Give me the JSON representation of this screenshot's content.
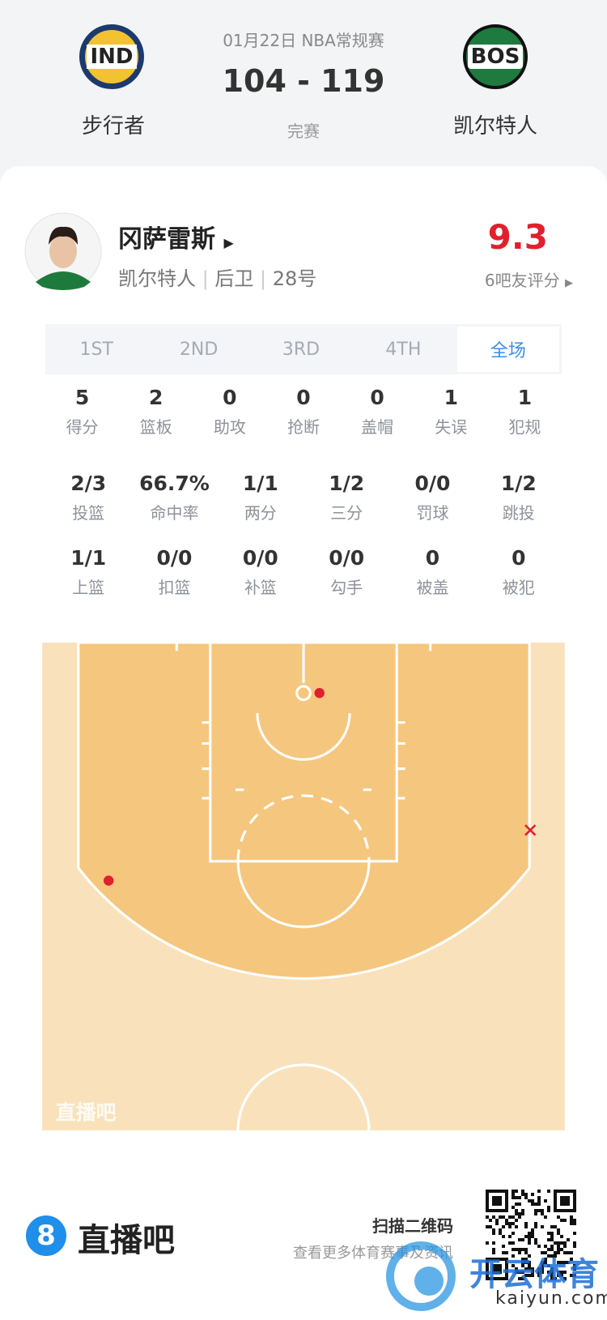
{
  "header": {
    "date": "01月22日 NBA常规赛",
    "score": "104 - 119",
    "status": "完赛",
    "home": {
      "logo": "IND",
      "name": "步行者"
    },
    "away": {
      "logo": "BOS",
      "name": "凯尔特人"
    }
  },
  "player": {
    "name": "冈萨雷斯",
    "team": "凯尔特人",
    "position": "后卫",
    "number": "28号",
    "rating": "9.3",
    "rating_label": "6吧友评分"
  },
  "tabs": [
    "1ST",
    "2ND",
    "3RD",
    "4TH",
    "全场"
  ],
  "stats": [
    [
      {
        "value": "5",
        "label": "得分"
      },
      {
        "value": "2",
        "label": "篮板"
      },
      {
        "value": "0",
        "label": "助攻"
      },
      {
        "value": "0",
        "label": "抢断"
      },
      {
        "value": "0",
        "label": "盖帽"
      },
      {
        "value": "1",
        "label": "失误"
      },
      {
        "value": "1",
        "label": "犯规"
      }
    ],
    [
      {
        "value": "2/3",
        "label": "投篮"
      },
      {
        "value": "66.7%",
        "label": "命中率"
      },
      {
        "value": "1/1",
        "label": "两分"
      },
      {
        "value": "1/2",
        "label": "三分"
      },
      {
        "value": "0/0",
        "label": "罚球"
      },
      {
        "value": "1/2",
        "label": "跳投"
      }
    ],
    [
      {
        "value": "1/1",
        "label": "上篮"
      },
      {
        "value": "0/0",
        "label": "扣篮"
      },
      {
        "value": "0/0",
        "label": "补篮"
      },
      {
        "value": "0/0",
        "label": "勾手"
      },
      {
        "value": "0",
        "label": "被盖"
      },
      {
        "value": "0",
        "label": "被犯"
      }
    ]
  ],
  "court": {
    "watermark": "直播吧"
  },
  "footer": {
    "logo_mark": "8",
    "brand": "直播吧",
    "scan": "扫描二维码",
    "more": "查看更多体育赛事及资讯"
  },
  "overlay": {
    "brand": "开云体育",
    "site": "kaiyun.com"
  }
}
